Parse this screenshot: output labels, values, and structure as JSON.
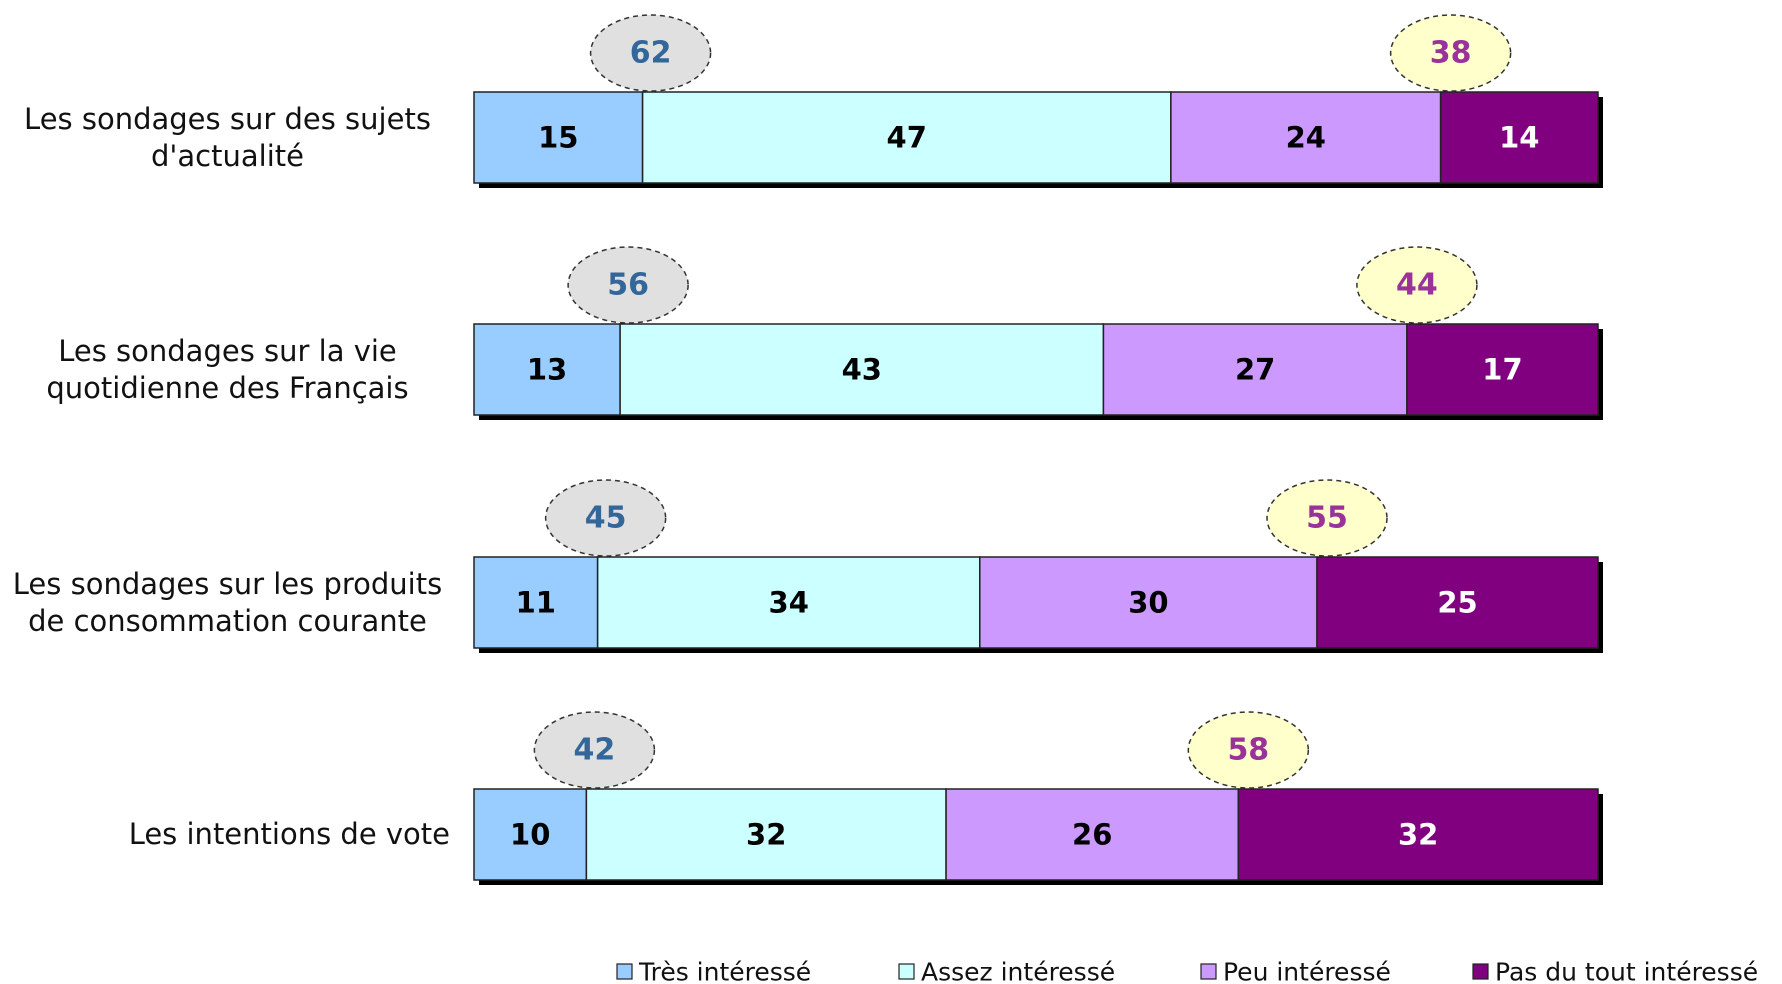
{
  "chart_data": {
    "type": "stacked_bar_horizontal",
    "categories": [
      "Les sondages sur des sujets d'actualité",
      "Les sondages sur la vie quotidienne des Français",
      "Les sondages sur les produits de consommation courante",
      "Les intentions de vote"
    ],
    "series": [
      {
        "name": "Très intéressé",
        "color": "#99ccff",
        "values": [
          15,
          13,
          11,
          10
        ]
      },
      {
        "name": "Assez intéressé",
        "color": "#ccffff",
        "values": [
          47,
          43,
          34,
          32
        ]
      },
      {
        "name": "Peu intéressé",
        "color": "#cc99ff",
        "values": [
          24,
          27,
          30,
          26
        ]
      },
      {
        "name": "Pas du tout intéressé",
        "color": "#800080",
        "values": [
          14,
          17,
          25,
          32
        ]
      }
    ],
    "xlim": [
      0,
      100
    ],
    "annotations": {
      "left": {
        "color": "#336699",
        "fill": "#e0e0e0",
        "values": [
          62,
          56,
          45,
          42
        ]
      },
      "right": {
        "color": "#993399",
        "fill": "#ffffcc",
        "values": [
          38,
          44,
          55,
          58
        ]
      }
    },
    "legend": "bottom"
  }
}
